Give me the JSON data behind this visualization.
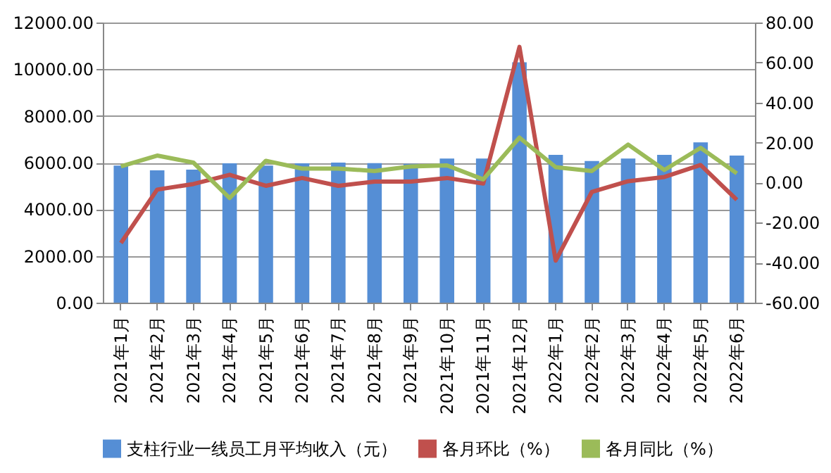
{
  "chart_data": {
    "type": "bar",
    "categories": [
      "2021年1月",
      "2021年2月",
      "2021年3月",
      "2021年4月",
      "2021年5月",
      "2021年6月",
      "2021年7月",
      "2021年8月",
      "2021年9月",
      "2021年10月",
      "2021年11月",
      "2021年12月",
      "2022年1月",
      "2022年2月",
      "2022年3月",
      "2022年4月",
      "2022年5月",
      "2022年6月"
    ],
    "series": [
      {
        "name": "支柱行业一线员工月平均收入（元）",
        "color": "#558ed5",
        "values": [
          5870,
          5670,
          5700,
          5970,
          5870,
          5970,
          6000,
          5980,
          5950,
          6170,
          6170,
          10300,
          6330,
          6070,
          6170,
          6330,
          6870,
          6300
        ]
      },
      {
        "name": "各月环比（%）",
        "type": "line",
        "axis": "y2",
        "color": "#c0504d",
        "values": [
          -30.2,
          -3.5,
          -0.7,
          3.9,
          -1.6,
          2.3,
          -1.6,
          0.5,
          0.5,
          2.3,
          -0.5,
          67.8,
          -39,
          -4.6,
          0.7,
          2.8,
          8.8,
          -8.6
        ]
      },
      {
        "name": "各月同比（%）",
        "type": "line",
        "axis": "y2",
        "color": "#9bbb59",
        "values": [
          8.1,
          13.5,
          10,
          -7.7,
          10.9,
          7,
          7,
          5.8,
          8.1,
          8.6,
          1.6,
          22.5,
          7.7,
          5.8,
          19,
          6.3,
          17.4,
          4.6
        ]
      }
    ],
    "ylim": [
      0,
      12000
    ],
    "yticks": [
      {
        "value": 0,
        "label": "0.00"
      },
      {
        "value": 2000,
        "label": "2000.00"
      },
      {
        "value": 4000,
        "label": "4000.00"
      },
      {
        "value": 6000,
        "label": "6000.00"
      },
      {
        "value": 8000,
        "label": "8000.00"
      },
      {
        "value": 10000,
        "label": "10000.00"
      },
      {
        "value": 12000,
        "label": "12000.00"
      }
    ],
    "y2lim": [
      -60,
      80
    ],
    "y2ticks": [
      {
        "value": -60,
        "label": "-60.00"
      },
      {
        "value": -40,
        "label": "-40.00"
      },
      {
        "value": -20,
        "label": "-20.00"
      },
      {
        "value": 0,
        "label": "0.00"
      },
      {
        "value": 20,
        "label": "20.00"
      },
      {
        "value": 40,
        "label": "40.00"
      },
      {
        "value": 60,
        "label": "60.00"
      },
      {
        "value": 80,
        "label": "80.00"
      }
    ],
    "grid": "y",
    "legend": "bottom",
    "line_style": "solid",
    "marker": "none"
  }
}
